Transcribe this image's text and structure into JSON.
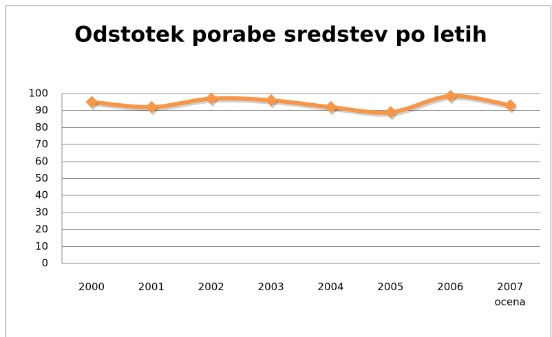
{
  "chart_data": {
    "type": "line",
    "title": "Odstotek porabe sredstev po letih",
    "categories": [
      "2000",
      "2001",
      "2002",
      "2003",
      "2004",
      "2005",
      "2006",
      "2007\nocena"
    ],
    "values": [
      95,
      92,
      97,
      96,
      92,
      89,
      98.5,
      93
    ],
    "color": "#f79646",
    "ylim": [
      0,
      100
    ],
    "yticks": [
      0,
      10,
      20,
      30,
      40,
      50,
      60,
      70,
      80,
      90,
      100
    ],
    "grid": true
  }
}
